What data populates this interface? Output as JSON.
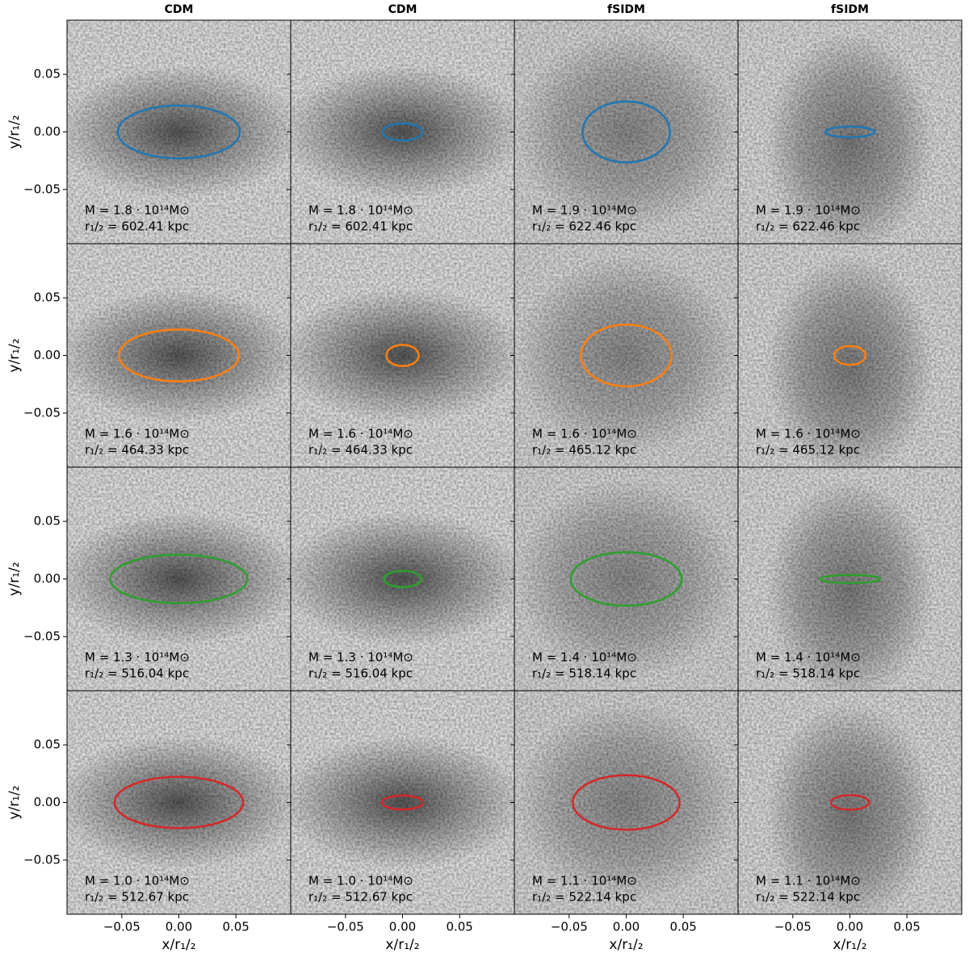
{
  "chart_data": {
    "type": "ellipse",
    "column_titles": [
      "CDM",
      "CDM",
      "fSIDM",
      "fSIDM"
    ],
    "row_colors": [
      "#1f77b4",
      "#ff7f0e",
      "#2ca02c",
      "#d62728"
    ],
    "xlabel": "x/r₁/₂",
    "ylabel": "y/r₁/₂",
    "xlim": [
      -0.098,
      0.098
    ],
    "ylim": [
      -0.097,
      0.097
    ],
    "xticks": [
      {
        "value": -0.05,
        "label": "−0.05"
      },
      {
        "value": 0,
        "label": "0.00"
      },
      0.05
    ],
    "yticks": [
      {
        "value": -0.05,
        "label": "−0.05"
      },
      {
        "value": 0,
        "label": "0.00"
      },
      0.05
    ],
    "panels": [
      {
        "mass": "M = 1.8 · 10¹⁴M⊙",
        "radius": "r₁/₂ = 602.41 kpc",
        "a": 0.0535,
        "b": 0.0229
      },
      {
        "mass": "M = 1.8 · 10¹⁴M⊙",
        "radius": "r₁/₂ = 602.41 kpc",
        "a": 0.0174,
        "b": 0.0074
      },
      {
        "mass": "M = 1.9 · 10¹⁴M⊙",
        "radius": "r₁/₂ = 622.46 kpc",
        "a": 0.0383,
        "b": 0.0264
      },
      {
        "mass": "M = 1.9 · 10¹⁴M⊙",
        "radius": "r₁/₂ = 622.46 kpc",
        "a": 0.0216,
        "b": 0.0046
      },
      {
        "mass": "M = 1.6 · 10¹⁴M⊙",
        "radius": "r₁/₂ = 464.33 kpc",
        "a": 0.0525,
        "b": 0.0225
      },
      {
        "mass": "M = 1.6 · 10¹⁴M⊙",
        "radius": "r₁/₂ = 464.33 kpc",
        "a": 0.0142,
        "b": 0.0092
      },
      {
        "mass": "M = 1.6 · 10¹⁴M⊙",
        "radius": "r₁/₂ = 465.12 kpc",
        "a": 0.0397,
        "b": 0.0268
      },
      {
        "mass": "M = 1.6 · 10¹⁴M⊙",
        "radius": "r₁/₂ = 465.12 kpc",
        "a": 0.0138,
        "b": 0.0081
      },
      {
        "mass": "M = 1.3 · 10¹⁴M⊙",
        "radius": "r₁/₂ = 516.04 kpc",
        "a": 0.06,
        "b": 0.021
      },
      {
        "mass": "M = 1.3 · 10¹⁴M⊙",
        "radius": "r₁/₂ = 516.04 kpc",
        "a": 0.0163,
        "b": 0.007
      },
      {
        "mass": "M = 1.4 · 10¹⁴M⊙",
        "radius": "r₁/₂ = 518.14 kpc",
        "a": 0.0486,
        "b": 0.0232
      },
      {
        "mass": "M = 1.4 · 10¹⁴M⊙",
        "radius": "r₁/₂ = 518.14 kpc",
        "a": 0.0266,
        "b": 0.0035
      },
      {
        "mass": "M = 1.0 · 10¹⁴M⊙",
        "radius": "r₁/₂ = 512.67 kpc",
        "a": 0.0564,
        "b": 0.0222
      },
      {
        "mass": "M = 1.0 · 10¹⁴M⊙",
        "radius": "r₁/₂ = 512.67 kpc",
        "a": 0.0181,
        "b": 0.006
      },
      {
        "mass": "M = 1.1 · 10¹⁴M⊙",
        "radius": "r₁/₂ = 522.14 kpc",
        "a": 0.0468,
        "b": 0.0236
      },
      {
        "mass": "M = 1.1 · 10¹⁴M⊙",
        "radius": "r₁/₂ = 522.14 kpc",
        "a": 0.0167,
        "b": 0.0063
      }
    ]
  }
}
